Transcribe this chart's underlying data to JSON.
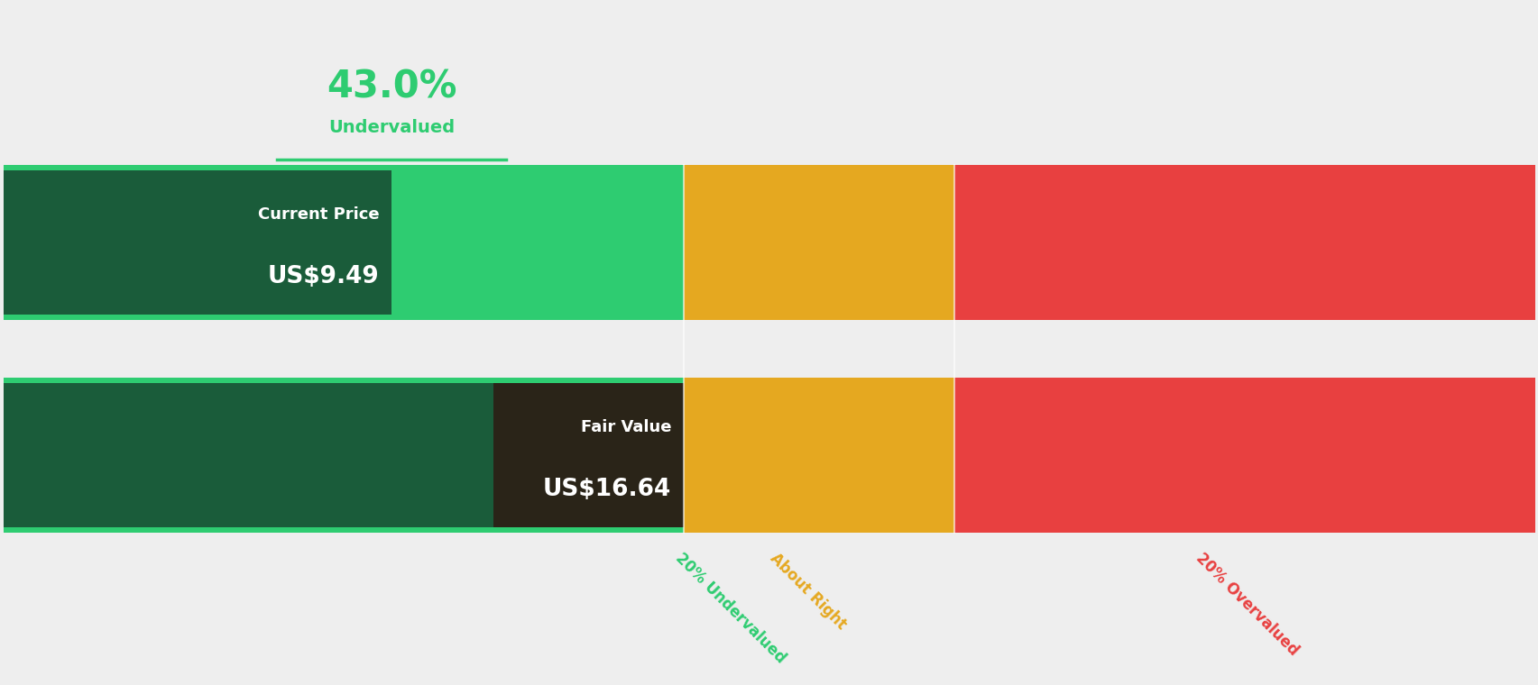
{
  "pct_undervalued": "43.0%",
  "pct_label": "Undervalued",
  "current_price": 9.49,
  "fair_value": 16.64,
  "current_price_label": "Current Price",
  "current_price_str": "US$9.49",
  "fair_value_label": "Fair Value",
  "fair_value_str": "US$16.64",
  "bg_color": "#eeeeee",
  "green_light": "#2ecc71",
  "green_dark": "#1a5c3a",
  "green_dark_fv": "#2d2d1a",
  "orange": "#e5a820",
  "red": "#e84040",
  "label_20under": "20% Undervalued",
  "label_about": "About Right",
  "label_20over": "20% Overvalued",
  "label_20under_color": "#2ecc71",
  "label_about_color": "#e5a820",
  "label_20over_color": "#e84040",
  "pct_color": "#2ecc71",
  "underline_color": "#2ecc71",
  "p_green": 0.444,
  "p_orange": 0.177,
  "p_red": 0.379
}
